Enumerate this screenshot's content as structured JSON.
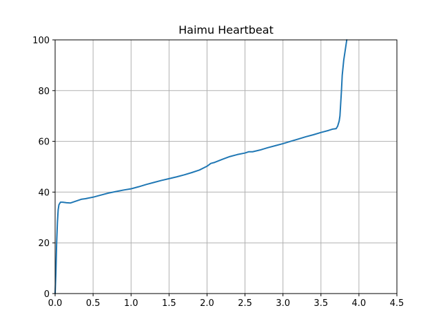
{
  "chart_data": {
    "type": "line",
    "title": "Haimu Heartbeat",
    "xlabel": "",
    "ylabel": "",
    "xlim": [
      0.0,
      4.5
    ],
    "ylim": [
      0,
      100
    ],
    "xticks": [
      0.0,
      0.5,
      1.0,
      1.5,
      2.0,
      2.5,
      3.0,
      3.5,
      4.0,
      4.5
    ],
    "xtick_labels": [
      "0.0",
      "0.5",
      "1.0",
      "1.5",
      "2.0",
      "2.5",
      "3.0",
      "3.5",
      "4.0",
      "4.5"
    ],
    "yticks": [
      0,
      20,
      40,
      60,
      80,
      100
    ],
    "ytick_labels": [
      "0",
      "20",
      "40",
      "60",
      "80",
      "100"
    ],
    "grid": true,
    "legend": "none",
    "colors": {
      "line": "#1f77b4",
      "grid": "#b0b0b0"
    },
    "series": [
      {
        "x": [
          0.0,
          0.01,
          0.02,
          0.03,
          0.04,
          0.05,
          0.06,
          0.07,
          0.1,
          0.15,
          0.2,
          0.25,
          0.3,
          0.35,
          0.4,
          0.5,
          0.6,
          0.7,
          0.8,
          0.9,
          1.0,
          1.1,
          1.2,
          1.3,
          1.4,
          1.5,
          1.6,
          1.7,
          1.8,
          1.9,
          2.0,
          2.05,
          2.1,
          2.2,
          2.3,
          2.4,
          2.5,
          2.55,
          2.6,
          2.7,
          2.8,
          2.9,
          3.0,
          3.1,
          3.2,
          3.3,
          3.4,
          3.5,
          3.6,
          3.65,
          3.7,
          3.72,
          3.74,
          3.75,
          3.76,
          3.77,
          3.78,
          3.8,
          3.82,
          3.84
        ],
        "y": [
          0,
          8,
          20,
          28,
          33,
          35,
          35.5,
          36,
          36,
          35.8,
          35.7,
          36.2,
          36.7,
          37.2,
          37.4,
          38,
          38.8,
          39.6,
          40.2,
          40.8,
          41.3,
          42.1,
          43,
          43.8,
          44.6,
          45.3,
          46,
          46.8,
          47.7,
          48.7,
          50.2,
          51.3,
          51.7,
          52.9,
          54,
          54.8,
          55.4,
          55.9,
          55.9,
          56.6,
          57.5,
          58.3,
          59.1,
          60,
          60.9,
          61.8,
          62.6,
          63.5,
          64.3,
          64.8,
          65,
          66,
          68,
          70,
          75,
          80,
          86,
          92,
          96,
          100
        ]
      }
    ]
  }
}
